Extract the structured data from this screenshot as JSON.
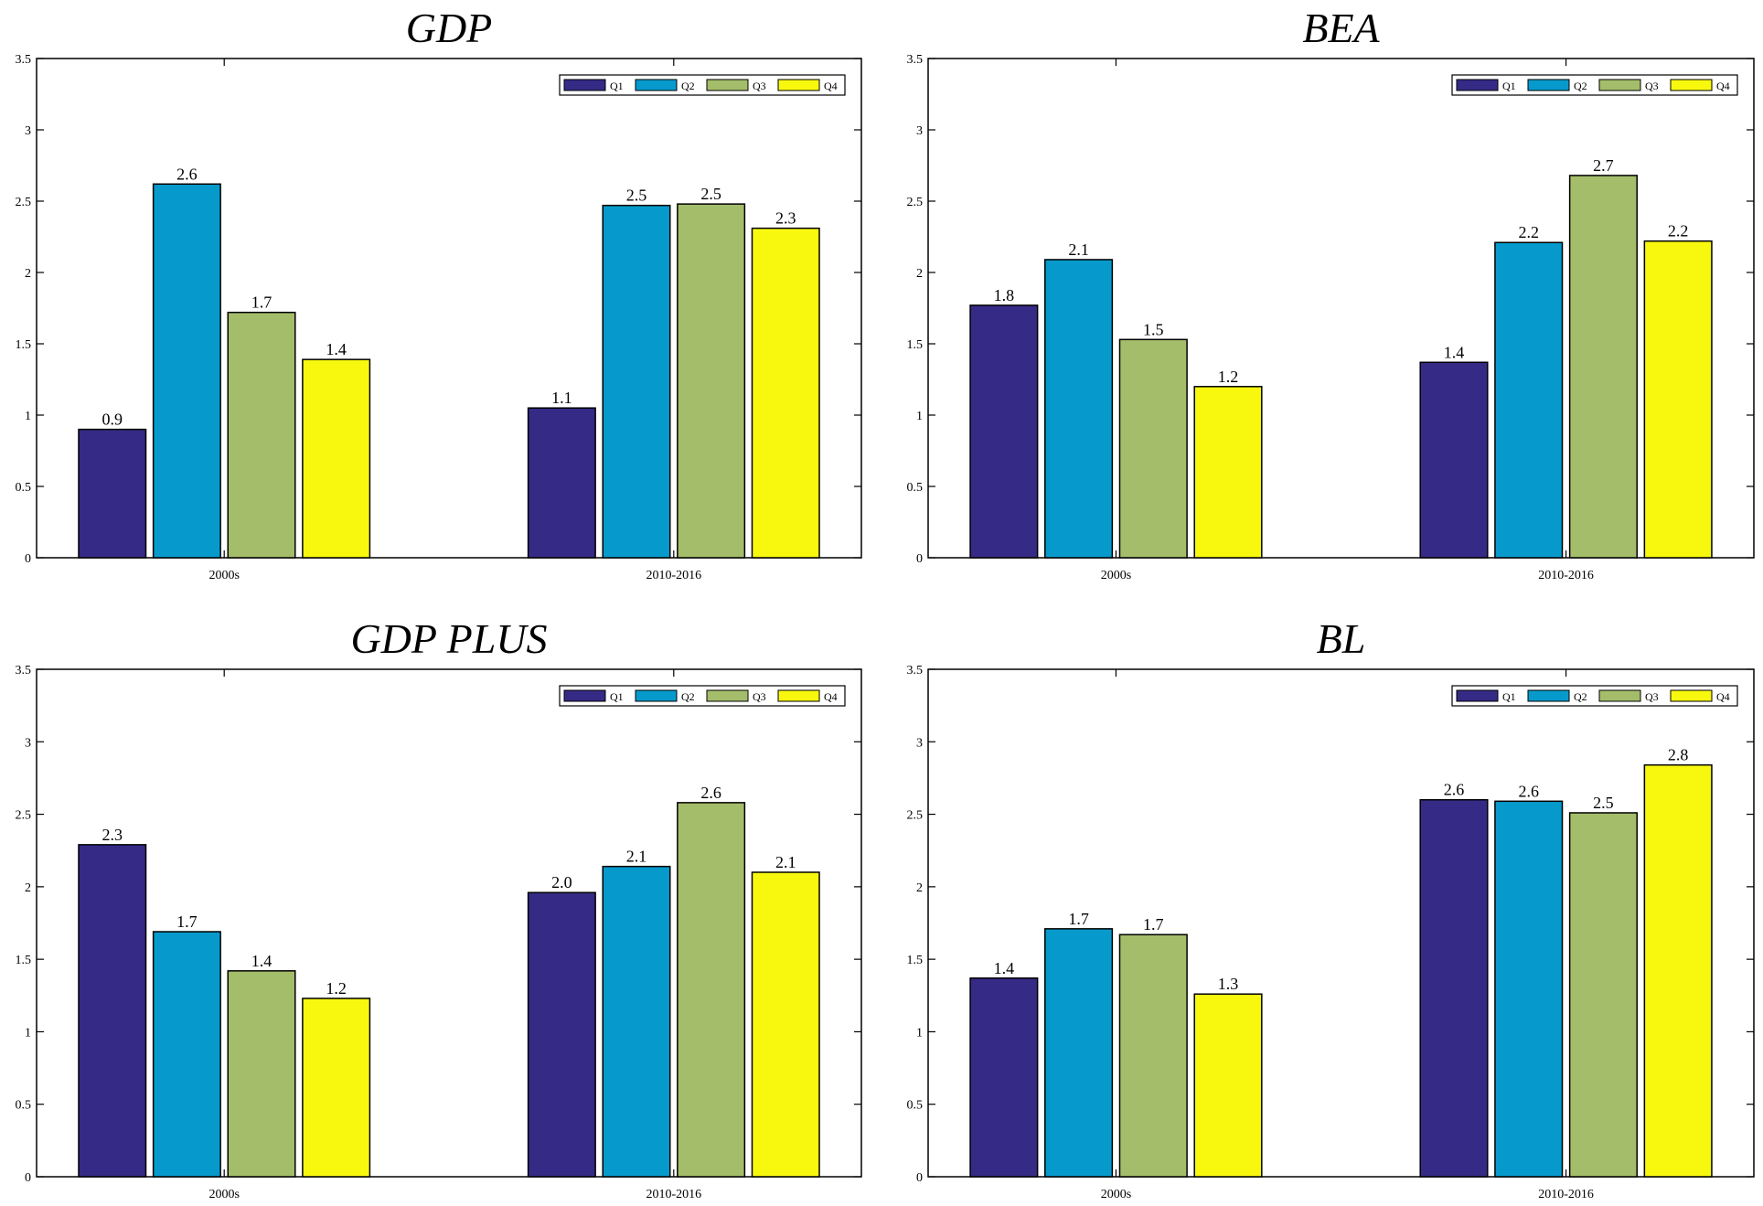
{
  "chart_data": [
    {
      "type": "bar",
      "title": "GDP",
      "categories": [
        "2000s",
        "2010-2016"
      ],
      "ylim": [
        0,
        3.5
      ],
      "yticks": [
        "0",
        "0.5",
        "1",
        "1.5",
        "2",
        "2.5",
        "3",
        "3.5"
      ],
      "legend_position": "top-right",
      "series": [
        {
          "name": "Q1",
          "values": [
            0.9,
            1.05
          ],
          "labels": [
            "0.9",
            "1.1"
          ]
        },
        {
          "name": "Q2",
          "values": [
            2.62,
            2.47
          ],
          "labels": [
            "2.6",
            "2.5"
          ]
        },
        {
          "name": "Q3",
          "values": [
            1.72,
            2.48
          ],
          "labels": [
            "1.7",
            "2.5"
          ]
        },
        {
          "name": "Q4",
          "values": [
            1.39,
            2.31
          ],
          "labels": [
            "1.4",
            "2.3"
          ]
        }
      ]
    },
    {
      "type": "bar",
      "title": "BEA",
      "categories": [
        "2000s",
        "2010-2016"
      ],
      "ylim": [
        0,
        3.5
      ],
      "yticks": [
        "0",
        "0.5",
        "1",
        "1.5",
        "2",
        "2.5",
        "3",
        "3.5"
      ],
      "legend_position": "top-right",
      "series": [
        {
          "name": "Q1",
          "values": [
            1.77,
            1.37
          ],
          "labels": [
            "1.8",
            "1.4"
          ]
        },
        {
          "name": "Q2",
          "values": [
            2.09,
            2.21
          ],
          "labels": [
            "2.1",
            "2.2"
          ]
        },
        {
          "name": "Q3",
          "values": [
            1.53,
            2.68
          ],
          "labels": [
            "1.5",
            "2.7"
          ]
        },
        {
          "name": "Q4",
          "values": [
            1.2,
            2.22
          ],
          "labels": [
            "1.2",
            "2.2"
          ]
        }
      ]
    },
    {
      "type": "bar",
      "title": "GDP PLUS",
      "categories": [
        "2000s",
        "2010-2016"
      ],
      "ylim": [
        0,
        3.5
      ],
      "yticks": [
        "0",
        "0.5",
        "1",
        "1.5",
        "2",
        "2.5",
        "3",
        "3.5"
      ],
      "legend_position": "top-right",
      "series": [
        {
          "name": "Q1",
          "values": [
            2.29,
            1.96
          ],
          "labels": [
            "2.3",
            "2.0"
          ]
        },
        {
          "name": "Q2",
          "values": [
            1.69,
            2.14
          ],
          "labels": [
            "1.7",
            "2.1"
          ]
        },
        {
          "name": "Q3",
          "values": [
            1.42,
            2.58
          ],
          "labels": [
            "1.4",
            "2.6"
          ]
        },
        {
          "name": "Q4",
          "values": [
            1.23,
            2.1
          ],
          "labels": [
            "1.2",
            "2.1"
          ]
        }
      ]
    },
    {
      "type": "bar",
      "title": "BL",
      "categories": [
        "2000s",
        "2010-2016"
      ],
      "ylim": [
        0,
        3.5
      ],
      "yticks": [
        "0",
        "0.5",
        "1",
        "1.5",
        "2",
        "2.5",
        "3",
        "3.5"
      ],
      "legend_position": "top-right",
      "series": [
        {
          "name": "Q1",
          "values": [
            1.37,
            2.6
          ],
          "labels": [
            "1.4",
            "2.6"
          ]
        },
        {
          "name": "Q2",
          "values": [
            1.71,
            2.59
          ],
          "labels": [
            "1.7",
            "2.6"
          ]
        },
        {
          "name": "Q3",
          "values": [
            1.67,
            2.51
          ],
          "labels": [
            "1.7",
            "2.5"
          ]
        },
        {
          "name": "Q4",
          "values": [
            1.26,
            2.84
          ],
          "labels": [
            "1.3",
            "2.8"
          ]
        }
      ]
    }
  ],
  "colors": {
    "Q1": "#352a85",
    "Q2": "#069acc",
    "Q3": "#a4bd6a",
    "Q4": "#f8f80f"
  }
}
